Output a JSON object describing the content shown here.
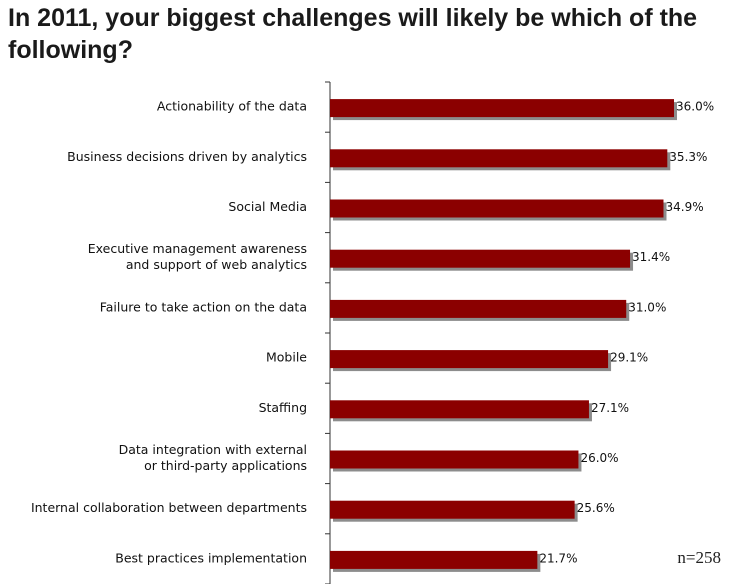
{
  "title": "In 2011, your biggest challenges will likely be which of the following?",
  "note": "n=258",
  "colors": {
    "bar": "#8b0000",
    "bar_shadow": "#8c8c8c",
    "axis": "#333333"
  },
  "chart_data": {
    "type": "bar",
    "orientation": "horizontal",
    "categories": [
      [
        "Actionability of the data"
      ],
      [
        "Business decisions driven by analytics"
      ],
      [
        "Social Media"
      ],
      [
        "Executive management awareness",
        "and support of web analytics"
      ],
      [
        "Failure to take action on the data"
      ],
      [
        "Mobile"
      ],
      [
        "Staffing"
      ],
      [
        "Data integration with external",
        "or third-party applications"
      ],
      [
        "Internal collaboration between departments"
      ],
      [
        "Best practices implementation"
      ]
    ],
    "values": [
      36.0,
      35.3,
      34.9,
      31.4,
      31.0,
      29.1,
      27.1,
      26.0,
      25.6,
      21.7
    ],
    "value_labels": [
      "36.0%",
      "35.3%",
      "34.9%",
      "31.4%",
      "31.0%",
      "29.1%",
      "27.1%",
      "26.0%",
      "25.6%",
      "21.7%"
    ],
    "xlim": [
      0,
      36.0
    ],
    "unit": "%",
    "grid": false,
    "legend": "none"
  }
}
